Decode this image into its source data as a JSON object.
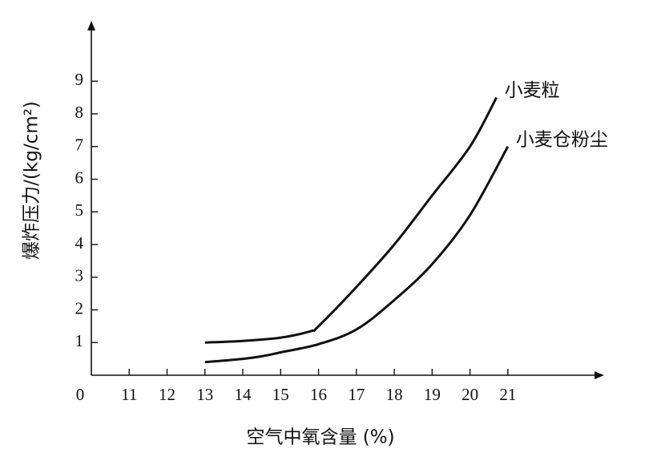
{
  "chart_data": {
    "type": "line",
    "x_label": "空气中氧含量 (%)",
    "y_label": "爆炸压力/(kg/cm²)",
    "xlim": [
      10,
      23.5
    ],
    "xticks": [
      {
        "value": 10,
        "label": "0"
      },
      11,
      12,
      13,
      14,
      15,
      16,
      17,
      18,
      19,
      20,
      21
    ],
    "ylim": [
      0,
      10.7
    ],
    "yticks": [
      1,
      2,
      3,
      4,
      5,
      6,
      7,
      8,
      9
    ],
    "grid": false,
    "series": [
      {
        "name": "小麦粒",
        "color": "#111111",
        "x": [
          13,
          14,
          15,
          15.8,
          16,
          17,
          18,
          19,
          20,
          20.7
        ],
        "values": [
          1.0,
          1.05,
          1.15,
          1.35,
          1.5,
          2.7,
          4.0,
          5.5,
          7.0,
          8.5
        ]
      },
      {
        "name": "小麦仓粉尘",
        "color": "#111111",
        "x": [
          13,
          14,
          14.5,
          15,
          16,
          17,
          18,
          19,
          20,
          21
        ],
        "values": [
          0.4,
          0.5,
          0.58,
          0.7,
          0.95,
          1.4,
          2.3,
          3.4,
          4.9,
          7.0
        ]
      }
    ]
  }
}
